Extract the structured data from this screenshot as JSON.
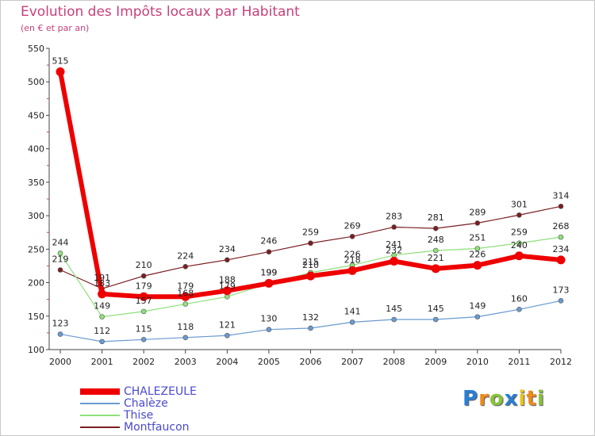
{
  "header": {
    "title": "Evolution des Impôts locaux par Habitant",
    "subtitle": "(en € et par an)"
  },
  "logo": {
    "text": "Proxiti",
    "letters": [
      "P",
      "r",
      "o",
      "x",
      "i",
      "t",
      "i"
    ],
    "colors": [
      "#2a7fd4",
      "#f08a1c",
      "#8ac23c",
      "#2a7fd4",
      "#e8c21c",
      "#f08a1c",
      "#8ac23c"
    ]
  },
  "chart_data": {
    "type": "line",
    "title": "Evolution des Impôts locaux par Habitant",
    "subtitle": "(en € et par an)",
    "xlabel": "",
    "ylabel": "",
    "ylim": [
      100,
      550
    ],
    "yticks": [
      100,
      150,
      200,
      250,
      300,
      350,
      400,
      450,
      500,
      550
    ],
    "grid": false,
    "legend_position": "bottom-left",
    "categories": [
      "2000",
      "2001",
      "2002",
      "2003",
      "2004",
      "2005",
      "2006",
      "2007",
      "2008",
      "2009",
      "2010",
      "2011",
      "2012"
    ],
    "series": [
      {
        "name": "Montfaucon",
        "color": "#7a1e22",
        "width": 1.2,
        "marker": 3,
        "values": [
          219,
          191,
          210,
          224,
          234,
          246,
          259,
          269,
          283,
          281,
          289,
          301,
          314
        ]
      },
      {
        "name": "Thise",
        "color": "#8ee07a",
        "width": 1.2,
        "marker": 3,
        "values": [
          244,
          149,
          157,
          168,
          179,
          199,
          215,
          226,
          241,
          248,
          251,
          259,
          268
        ]
      },
      {
        "name": "Chalèze",
        "color": "#6a9ad0",
        "width": 1.2,
        "marker": 3,
        "values": [
          123,
          112,
          115,
          118,
          121,
          130,
          132,
          141,
          145,
          145,
          149,
          160,
          173
        ]
      },
      {
        "name": "CHALEZEULE",
        "color": "#ee0000",
        "width": 6,
        "marker": 5.5,
        "values": [
          515,
          183,
          179,
          179,
          188,
          199,
          210,
          218,
          232,
          221,
          226,
          240,
          234
        ]
      }
    ]
  },
  "legend": [
    {
      "name": "CHALEZEULE",
      "color": "#ee0000",
      "thickness": 8
    },
    {
      "name": "Chalèze",
      "color": "#6a9ad0",
      "thickness": 2
    },
    {
      "name": "Thise",
      "color": "#8ee07a",
      "thickness": 2
    },
    {
      "name": "Montfaucon",
      "color": "#7a1e22",
      "thickness": 2
    }
  ]
}
